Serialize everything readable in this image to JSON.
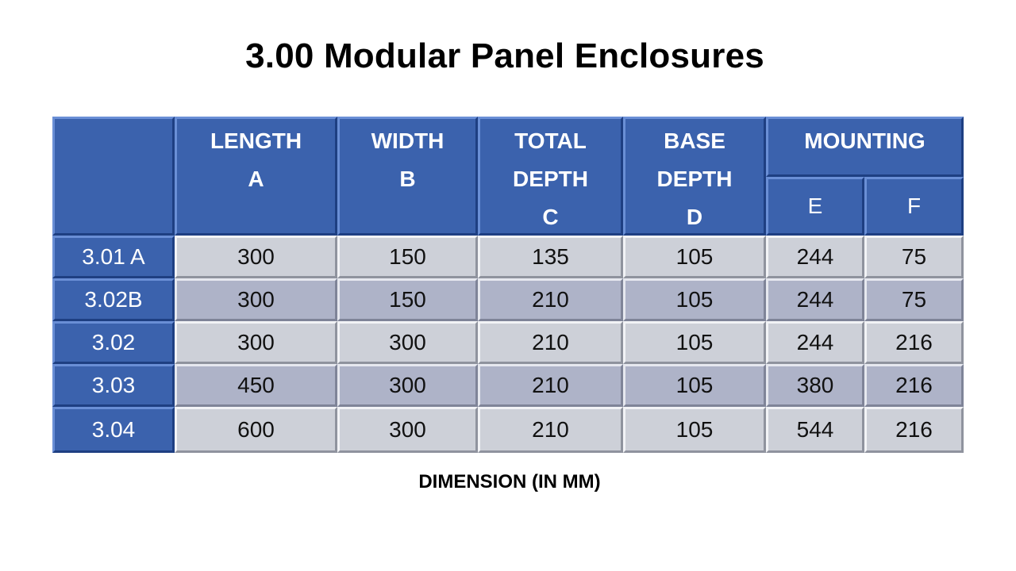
{
  "title": "3.00 Modular Panel Enclosures",
  "caption": "DIMENSION (IN MM)",
  "headers": {
    "length": [
      "LENGTH",
      "A"
    ],
    "width": [
      "WIDTH",
      "B"
    ],
    "total_depth": [
      "TOTAL",
      "DEPTH",
      "C"
    ],
    "base_depth": [
      "BASE",
      "DEPTH",
      "D"
    ],
    "mounting": "MOUNTING",
    "mounting_e": "E",
    "mounting_f": "F"
  },
  "rows": [
    {
      "id": "3.01 A",
      "a": "300",
      "b": "150",
      "c": "135",
      "d": "105",
      "e": "244",
      "f": "75"
    },
    {
      "id": "3.02B",
      "a": "300",
      "b": "150",
      "c": "210",
      "d": "105",
      "e": "244",
      "f": "75"
    },
    {
      "id": "3.02",
      "a": "300",
      "b": "300",
      "c": "210",
      "d": "105",
      "e": "244",
      "f": "216"
    },
    {
      "id": "3.03",
      "a": "450",
      "b": "300",
      "c": "210",
      "d": "105",
      "e": "380",
      "f": "216"
    },
    {
      "id": "3.04",
      "a": "600",
      "b": "300",
      "c": "210",
      "d": "105",
      "e": "544",
      "f": "216"
    }
  ],
  "colors": {
    "header_blue": "#3b62ad",
    "cell_light": "#cdd0d8",
    "cell_dark": "#aeb3c8"
  }
}
